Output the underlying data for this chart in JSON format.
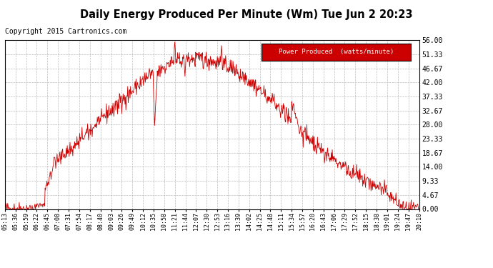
{
  "title": "Daily Energy Produced Per Minute (Wm) Tue Jun 2 20:23",
  "copyright": "Copyright 2015 Cartronics.com",
  "legend_label": "Power Produced  (watts/minute)",
  "legend_bg": "#cc0000",
  "legend_fg": "#ffffff",
  "line_color": "#cc0000",
  "bg_color": "#ffffff",
  "grid_color": "#bbbbbb",
  "ylim": [
    0,
    56.0
  ],
  "yticks": [
    0.0,
    4.67,
    9.33,
    14.0,
    18.67,
    23.33,
    28.0,
    32.67,
    37.33,
    42.0,
    46.67,
    51.33,
    56.0
  ],
  "ytick_labels": [
    "0.00",
    "4.67",
    "9.33",
    "14.00",
    "18.67",
    "23.33",
    "28.00",
    "32.67",
    "37.33",
    "42.00",
    "46.67",
    "51.33",
    "56.00"
  ],
  "xtick_labels": [
    "05:13",
    "05:36",
    "05:59",
    "06:22",
    "06:45",
    "07:08",
    "07:31",
    "07:54",
    "08:17",
    "08:40",
    "09:03",
    "09:26",
    "09:49",
    "10:12",
    "10:35",
    "10:58",
    "11:21",
    "11:44",
    "12:07",
    "12:30",
    "12:53",
    "13:16",
    "13:39",
    "14:02",
    "14:25",
    "14:48",
    "15:11",
    "15:34",
    "15:57",
    "16:20",
    "16:43",
    "17:06",
    "17:29",
    "17:52",
    "18:15",
    "18:38",
    "19:01",
    "19:24",
    "19:47",
    "20:10"
  ]
}
